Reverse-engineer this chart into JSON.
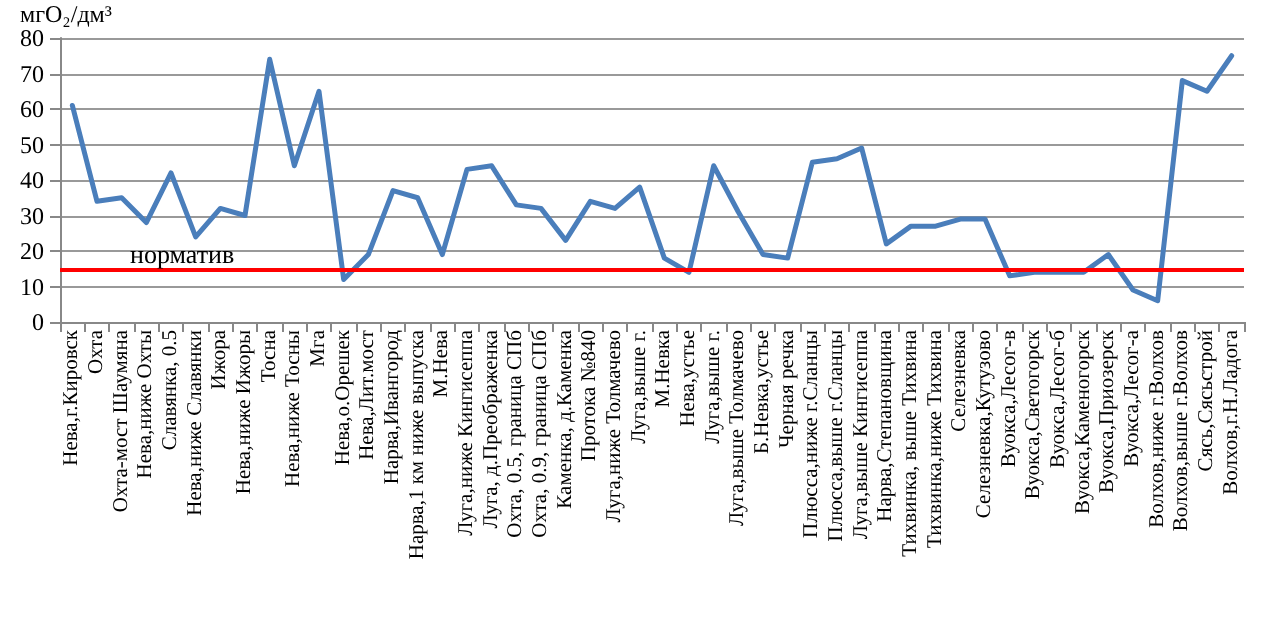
{
  "chart_data": {
    "type": "line",
    "ylabel": "мгО₂/дм³",
    "categories": [
      "Нева,г.Кировск",
      "Охта",
      "Охта-мост Шаумяна",
      "Нева,ниже Охты",
      "Славянка, 0.5",
      "Нева,ниже Славянки",
      "Ижора",
      "Нева,ниже Ижоры",
      "Тосна",
      "Нева,ниже Тосны",
      "Мга",
      "Нева,о.Орешек",
      "Нева,Лит.мост",
      "Нарва,Ивангород",
      "Нарва,1 км ниже выпуска",
      "М.Нева",
      "Луга,ниже Кингисеппа",
      "Луга, д.Преображенка",
      "Охта, 0.5, граница СПб",
      "Охта, 0.9, граница СПб",
      "Каменка, д.Каменка",
      "Протока №840",
      "Луга,ниже Толмачево",
      "Луга,выше г.",
      "М.Невка",
      "Нева,устье",
      "Луга,выше г.",
      "Луга,выше Толмачево",
      "Б.Невка,устье",
      "Черная речка",
      "Плюсса,ниже г.Сланцы",
      "Плюсса,выше г.Сланцы",
      "Луга,выше Кингисеппа",
      "Нарва,Степановщина",
      "Тихвинка, выше Тихвина",
      "Тихвинка,ниже Тихвина",
      "Селезневка",
      "Селезневка,Кутузово",
      "Вуокса,Лесог-в",
      "Вуокса,Светогорск",
      "Вуокса,Лесог-б",
      "Вуокса,Каменогорск",
      "Вуокса,Приозерск",
      "Вуокса,Лесог-а",
      "Волхов,ниже г.Волхов",
      "Волхов,выше г.Волхов",
      "Сясь,Сясьстрой",
      "Волхов,г.Н.Ладога"
    ],
    "series": [
      {
        "color": "#4a7ebb",
        "values": [
          61,
          34,
          35,
          28,
          42,
          24,
          32,
          30,
          74,
          44,
          65,
          12,
          19,
          37,
          35,
          19,
          43,
          44,
          33,
          32,
          23,
          34,
          32,
          38,
          18,
          14,
          44,
          31,
          19,
          18,
          45,
          46,
          49,
          22,
          27,
          27,
          29,
          29,
          13,
          14,
          14,
          14,
          19,
          9,
          6,
          68,
          65,
          75
        ]
      }
    ],
    "ylim": [
      0,
      80
    ],
    "yticks": [
      0,
      10,
      20,
      30,
      40,
      50,
      60,
      70,
      80
    ],
    "grid": "y",
    "marker": "none",
    "line_style": "solid",
    "ref_lines": [
      {
        "axis": "y",
        "value": 15,
        "label": "норматив",
        "color": "#ff0000"
      }
    ]
  }
}
